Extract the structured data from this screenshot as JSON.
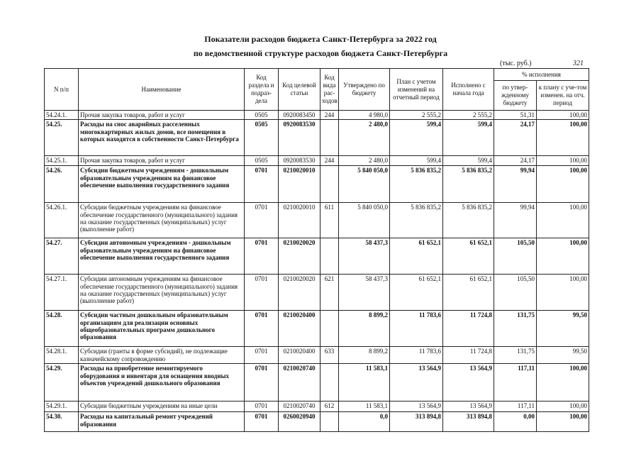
{
  "header": {
    "title_line1": "Показатели расходов бюджета Санкт-Петербурга за 2022 год",
    "title_line2": "по ведомственной структуре расходов бюджета Санкт-Петербурга",
    "units": "(тыс. руб.)",
    "page": "321"
  },
  "table": {
    "columns": [
      "N п/п",
      "Наименование",
      "Код раздела и подраз-дела",
      "Код целевой статьи",
      "Код вида рас-ходов",
      "Утверждено по бюджету",
      "План с учетом изменений на отчетный период",
      "Исполнено с начала года"
    ],
    "percent_group": "% исполнения",
    "percent_columns": [
      "по утвер-жденному бюджету",
      "к плану с уче-том изменен. на отч. период"
    ],
    "rows": [
      [
        "54.24.1.",
        "Прочая закупка товаров, работ и услуг",
        "0505",
        "0920083450",
        "244",
        "4 980,0",
        "2 555,2",
        "2 555,2",
        "51,31",
        "100,00"
      ],
      [
        "54.25.",
        "Расходы на снос аварийных расселенных многоквартирных жилых домов, все помещения в которых находятся в собственности Санкт-Петербурга",
        "0505",
        "0920083530",
        null,
        "2 480,0",
        "599,4",
        "599,4",
        "24,17",
        "100,00"
      ],
      [
        "54.25.1.",
        "Прочая закупка товаров, работ и услуг",
        "0505",
        "0920083530",
        "244",
        "2 480,0",
        "599,4",
        "599,4",
        "24,17",
        "100,00"
      ],
      [
        "54.26.",
        "Субсидии бюджетным учреждениям - дошкольным образовательным учреждениям на финансовое обеспечение выполнения государственного задания",
        "0701",
        "0210020010",
        null,
        "5 840 050,0",
        "5 836 835,2",
        "5 836 835,2",
        "99,94",
        "100,00"
      ],
      [
        "54.26.1.",
        "Субсидии бюджетным учреждениям на финансовое обеспечение государственного (муниципального) задания на оказание государственных (муниципальных) услуг (выполнение работ)",
        "0701",
        "0210020010",
        "611",
        "5 840 050,0",
        "5 836 835,2",
        "5 836 835,2",
        "99,94",
        "100,00"
      ],
      [
        "54.27.",
        "Субсидии автономным учреждениям - дошкольным образовательным учреждениям на финансовое обеспечение выполнения государственного задания",
        "0701",
        "0210020020",
        null,
        "58 437,3",
        "61 652,1",
        "61 652,1",
        "105,50",
        "100,00"
      ],
      [
        "54.27.1.",
        "Субсидии автономным учреждениям на финансовое обеспечение государственного (муниципального) задания на оказание государственных (муниципальных) услуг (выполнение работ)",
        "0701",
        "0210020020",
        "621",
        "58 437,3",
        "61 652,1",
        "61 652,1",
        "105,50",
        "100,00"
      ],
      [
        "54.28.",
        "Субсидии частным дошкольным образовательным организациям для реализации основных общеобразовательных программ дошкольного образования",
        "0701",
        "0210020400",
        null,
        "8 899,2",
        "11 783,6",
        "11 724,8",
        "131,75",
        "99,50"
      ],
      [
        "54.28.1.",
        "Субсидии (гранты в форме субсидий), не подлежащие казначейскому сопровождению",
        "0701",
        "0210020400",
        "633",
        "8 899,2",
        "11 783,6",
        "11 724,8",
        "131,75",
        "99,50"
      ],
      [
        "54.29.",
        "Расходы на приобретение немонтируемого оборудования и инвентаря для оснащения вводных объектов учреждений дошкольного образования",
        "0701",
        "0210020740",
        null,
        "11 583,1",
        "13 564,9",
        "13 564,9",
        "117,11",
        "100,00"
      ],
      [
        "54.29.1.",
        "Субсидии бюджетным учреждениям на иные цели",
        "0701",
        "0210020740",
        "612",
        "11 583,1",
        "13 564,9",
        "13 564,9",
        "117,11",
        "100,00"
      ],
      [
        "54.30.",
        "Расходы на капитальный ремонт учреждений образования",
        "0701",
        "0260020940",
        null,
        "0,0",
        "313 894,8",
        "313 894,8",
        "0,00",
        "100,00"
      ]
    ]
  }
}
